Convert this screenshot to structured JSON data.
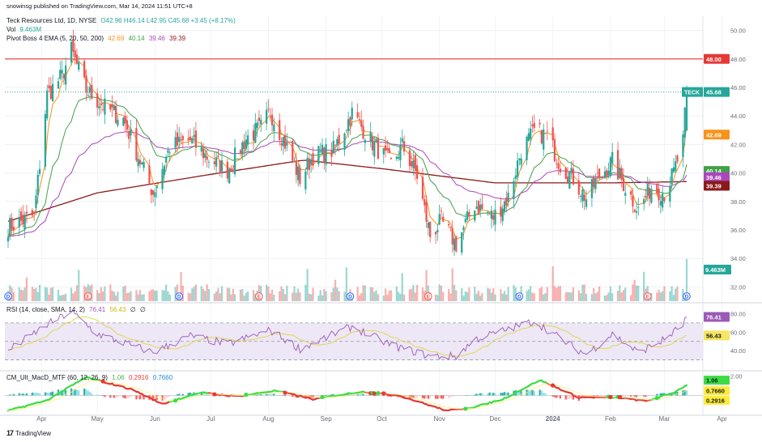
{
  "published": "snowinsg published on TradingView.com, Mar 14, 2024 11:51 UTC+8",
  "brand": "TradingView",
  "header": {
    "symbol": "Teck Resources Ltd, 1D, NYSE",
    "ohlc": "O42.96 H46.14 L42.95 C45.68 +3.45 (+8.17%)",
    "vol_label": "Vol",
    "vol_value": "9.463M",
    "ema_label": "Pivot Boss 4 EMA (5, 20, 50, 200)",
    "ema_values": [
      "42.69",
      "40.14",
      "39.46",
      "39.39"
    ],
    "rsi_label": "RSI (14, close, SMA, 14, 2)",
    "rsi_values": [
      "76.41",
      "56.43",
      "∅",
      "∅"
    ],
    "macd_label": "CM_Ult_MacD_MTF (60, 12, 26, 9)",
    "macd_values": [
      "1.06",
      "0.2916",
      "0.7660"
    ]
  },
  "colors": {
    "up": "#26a69a",
    "down": "#ef5350",
    "ema5": "#f7931a",
    "ema20": "#43a047",
    "ema50": "#ab47bc",
    "ema200": "#8b1a1a",
    "resistance": "#e53935",
    "rsi": "#9b59b6",
    "rsi_ma": "#f5e663",
    "rsi_band": "#ede7f6"
  },
  "chart_data": [
    {
      "type": "candlestick",
      "title": "Teck Resources Ltd, 1D, NYSE",
      "ylim": [
        31,
        51
      ],
      "yticks": [
        32.0,
        34.0,
        36.0,
        38.0,
        40.0,
        42.0,
        44.0,
        46.0,
        48.0,
        50.0
      ],
      "xticks": [
        "Apr",
        "May",
        "Jun",
        "Jul",
        "Aug",
        "Sep",
        "Oct",
        "Nov",
        "Dec",
        "2024",
        "Feb",
        "Mar",
        "Apr"
      ],
      "horizontal_line": {
        "value": 48.0,
        "label": "48.00"
      },
      "price_labels": [
        {
          "name": "TECK",
          "value": 45.68,
          "label": "45.68"
        },
        {
          "name": "EMA 5",
          "value": 42.69,
          "label": "42.69"
        },
        {
          "name": "EMA 20",
          "value": 40.14,
          "label": "40.14"
        },
        {
          "name": "EMA 50",
          "value": 39.46,
          "label": "39.46"
        },
        {
          "name": "EMA 200",
          "value": 39.39,
          "label": "39.39"
        },
        {
          "name": "Vol",
          "label": "9.463M"
        }
      ],
      "close_anchors": [
        [
          "2023-03-14",
          36.2
        ],
        [
          "2023-03-28",
          37.0
        ],
        [
          "2023-04-04",
          45.5
        ],
        [
          "2023-04-12",
          46.8
        ],
        [
          "2023-04-17",
          48.6
        ],
        [
          "2023-04-25",
          45.8
        ],
        [
          "2023-05-05",
          44.6
        ],
        [
          "2023-05-15",
          43.8
        ],
        [
          "2023-05-25",
          40.5
        ],
        [
          "2023-05-31",
          38.6
        ],
        [
          "2023-06-09",
          41.8
        ],
        [
          "2023-06-20",
          42.3
        ],
        [
          "2023-06-30",
          41.0
        ],
        [
          "2023-07-10",
          40.2
        ],
        [
          "2023-07-20",
          42.4
        ],
        [
          "2023-07-28",
          43.2
        ],
        [
          "2023-08-02",
          44.3
        ],
        [
          "2023-08-11",
          41.8
        ],
        [
          "2023-08-18",
          39.6
        ],
        [
          "2023-08-25",
          41.2
        ],
        [
          "2023-09-05",
          41.6
        ],
        [
          "2023-09-15",
          44.2
        ],
        [
          "2023-09-26",
          42.1
        ],
        [
          "2023-10-06",
          40.6
        ],
        [
          "2023-10-12",
          41.9
        ],
        [
          "2023-10-20",
          39.8
        ],
        [
          "2023-10-27",
          35.6
        ],
        [
          "2023-11-02",
          36.6
        ],
        [
          "2023-11-10",
          35.0
        ],
        [
          "2023-11-20",
          37.8
        ],
        [
          "2023-11-30",
          36.9
        ],
        [
          "2023-12-08",
          38.3
        ],
        [
          "2023-12-15",
          41.6
        ],
        [
          "2023-12-22",
          42.9
        ],
        [
          "2023-12-29",
          42.6
        ],
        [
          "2024-01-05",
          40.6
        ],
        [
          "2024-01-12",
          39.6
        ],
        [
          "2024-01-19",
          38.2
        ],
        [
          "2024-01-26",
          39.8
        ],
        [
          "2024-02-02",
          40.8
        ],
        [
          "2024-02-09",
          39.0
        ],
        [
          "2024-02-16",
          37.4
        ],
        [
          "2024-02-23",
          39.0
        ],
        [
          "2024-03-01",
          38.6
        ],
        [
          "2024-03-06",
          40.0
        ],
        [
          "2024-03-11",
          42.2
        ],
        [
          "2024-03-13",
          45.68
        ]
      ],
      "ema200_anchors": [
        [
          "2023-03-14",
          36.6
        ],
        [
          "2023-05-01",
          38.6
        ],
        [
          "2023-07-01",
          39.9
        ],
        [
          "2023-08-20",
          40.9
        ],
        [
          "2023-10-01",
          40.3
        ],
        [
          "2023-12-01",
          39.3
        ],
        [
          "2024-02-01",
          39.3
        ],
        [
          "2024-03-13",
          39.39
        ]
      ],
      "volume_ylim": [
        0,
        9.463
      ],
      "volume_last": 9.463,
      "event_markers": {
        "D": [
          "2023-03-14",
          "2023-06-14",
          "2023-09-14",
          "2023-12-14",
          "2024-03-13"
        ],
        "E": [
          "2023-04-26",
          "2023-07-27",
          "2023-10-26",
          "2024-02-21"
        ]
      }
    },
    {
      "type": "line",
      "title": "RSI (14, close, SMA, 14, 2)",
      "ylim": [
        20,
        90
      ],
      "yticks": [
        40.0,
        60.0,
        80.0
      ],
      "bands": [
        30,
        50,
        70
      ],
      "series": [
        {
          "name": "RSI",
          "last": 76.41
        },
        {
          "name": "RSI-based MA",
          "last": 56.43
        }
      ],
      "anchors": [
        [
          "2023-03-14",
          40
        ],
        [
          "2023-04-04",
          68
        ],
        [
          "2023-04-17",
          82
        ],
        [
          "2023-05-01",
          58
        ],
        [
          "2023-05-31",
          38
        ],
        [
          "2023-06-20",
          56
        ],
        [
          "2023-07-10",
          47
        ],
        [
          "2023-08-02",
          62
        ],
        [
          "2023-08-18",
          42
        ],
        [
          "2023-09-15",
          66
        ],
        [
          "2023-10-06",
          46
        ],
        [
          "2023-10-27",
          34
        ],
        [
          "2023-11-10",
          34
        ],
        [
          "2023-11-20",
          52
        ],
        [
          "2023-12-22",
          72
        ],
        [
          "2024-01-12",
          44
        ],
        [
          "2024-01-19",
          36
        ],
        [
          "2024-02-02",
          58
        ],
        [
          "2024-02-16",
          38
        ],
        [
          "2024-03-01",
          52
        ],
        [
          "2024-03-11",
          68
        ],
        [
          "2024-03-13",
          76.41
        ]
      ]
    },
    {
      "type": "bar",
      "title": "CM_Ult_MacD_MTF (60, 12, 26, 9)",
      "ylim": [
        -1.9,
        2.4
      ],
      "yticks": [
        2.0
      ],
      "series": [
        {
          "name": "MACD",
          "last": 1.06
        },
        {
          "name": "Histogram",
          "last": 0.2916
        },
        {
          "name": "Signal",
          "last": 0.766
        }
      ],
      "anchors": [
        [
          "2023-03-14",
          -1.6
        ],
        [
          "2023-04-04",
          -0.5
        ],
        [
          "2023-04-25",
          1.9
        ],
        [
          "2023-05-20",
          0.6
        ],
        [
          "2023-06-05",
          -0.9
        ],
        [
          "2023-06-25",
          0.3
        ],
        [
          "2023-07-15",
          -0.1
        ],
        [
          "2023-08-05",
          0.5
        ],
        [
          "2023-08-25",
          -0.4
        ],
        [
          "2023-09-20",
          0.4
        ],
        [
          "2023-10-10",
          0.0
        ],
        [
          "2023-11-05",
          -1.6
        ],
        [
          "2023-11-20",
          -1.2
        ],
        [
          "2023-12-05",
          -0.4
        ],
        [
          "2023-12-25",
          1.6
        ],
        [
          "2024-01-15",
          -0.2
        ],
        [
          "2024-02-05",
          -0.2
        ],
        [
          "2024-02-20",
          -0.6
        ],
        [
          "2024-03-05",
          0.2
        ],
        [
          "2024-03-13",
          1.06
        ]
      ]
    }
  ]
}
